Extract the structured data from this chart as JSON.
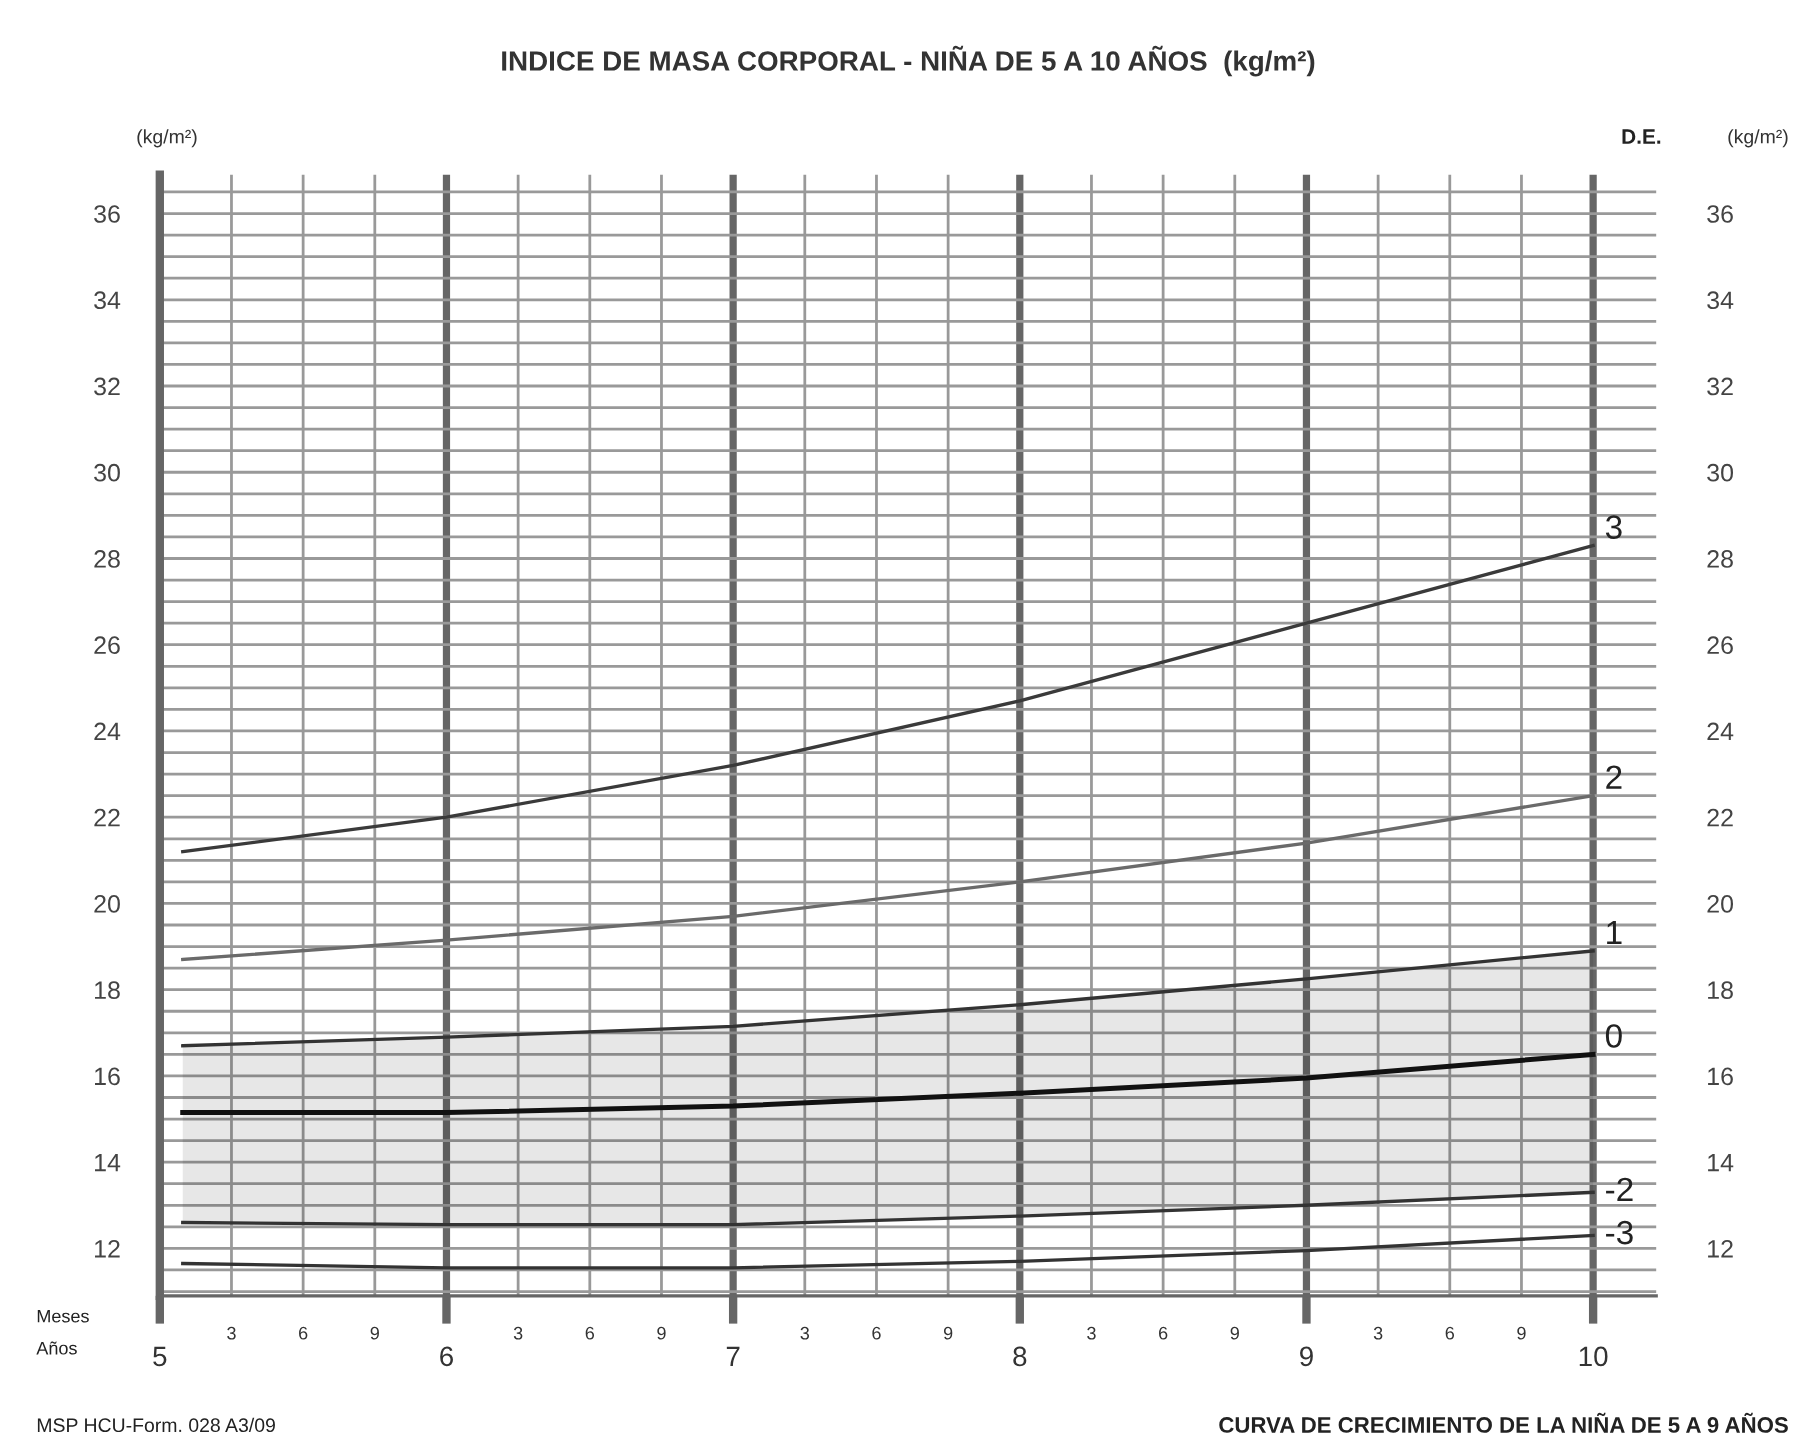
{
  "chart_data": {
    "type": "line",
    "title": "INDICE DE MASA CORPORAL - NIÑA DE 5 A 10 AÑOS  (kg/m²)",
    "ylabel": "(kg/m²)",
    "y2label": "(kg/m²)",
    "annotations": [
      "D.E.",
      "Meses",
      "Años",
      "MSP HCU-Form. 028 A3/09",
      "CURVA DE CRECIMIENTO DE LA NIÑA DE 5 A 9 AÑOS",
      "3",
      "6",
      "9",
      "3",
      "6",
      "9",
      "3",
      "6",
      "9",
      "3",
      "6",
      "9",
      "3",
      "6",
      "9"
    ],
    "x": [
      5.08,
      6,
      7,
      8,
      9,
      10
    ],
    "series": [
      {
        "name": "3",
        "color": "#3a3a3a",
        "values": [
          21.2,
          22.0,
          23.2,
          24.7,
          26.5,
          28.3
        ]
      },
      {
        "name": "2",
        "color": "#6a6a6a",
        "values": [
          18.7,
          19.15,
          19.7,
          20.5,
          21.4,
          22.5
        ]
      },
      {
        "name": "1",
        "color": "#333333",
        "values": [
          16.7,
          16.9,
          17.15,
          17.65,
          18.25,
          18.9
        ]
      },
      {
        "name": "0",
        "color": "#111111",
        "values": [
          15.15,
          15.15,
          15.3,
          15.6,
          15.95,
          16.5
        ],
        "lower": [
          12.6,
          12.55,
          12.55,
          12.75,
          13.0,
          13.3
        ],
        "upper": [
          16.7,
          16.9,
          17.15,
          17.65,
          18.25,
          18.9
        ]
      },
      {
        "name": "-2",
        "color": "#333333",
        "values": [
          12.6,
          12.55,
          12.55,
          12.75,
          13.0,
          13.3
        ]
      },
      {
        "name": "-3",
        "color": "#333333",
        "values": [
          11.65,
          11.55,
          11.55,
          11.7,
          11.95,
          12.3
        ]
      }
    ],
    "xlim": [
      5,
      10.22
    ],
    "ylim": [
      10.9,
      36.9
    ],
    "y2lim": [
      10.9,
      36.9
    ],
    "xticks": [
      5,
      {
        "value": 5.25,
        "label": null
      },
      {
        "value": 5.5,
        "label": null
      },
      {
        "value": 5.75,
        "label": null
      },
      6,
      {
        "value": 6.25,
        "label": null
      },
      {
        "value": 6.5,
        "label": null
      },
      {
        "value": 6.75,
        "label": null
      },
      7,
      {
        "value": 7.25,
        "label": null
      },
      {
        "value": 7.5,
        "label": null
      },
      {
        "value": 7.75,
        "label": null
      },
      8,
      {
        "value": 8.25,
        "label": null
      },
      {
        "value": 8.5,
        "label": null
      },
      {
        "value": 8.75,
        "label": null
      },
      9,
      {
        "value": 9.25,
        "label": null
      },
      {
        "value": 9.5,
        "label": null
      },
      {
        "value": 9.75,
        "label": null
      },
      10
    ],
    "yticks": [
      {
        "value": 11,
        "label": null
      },
      {
        "value": 11.5,
        "label": null
      },
      12,
      {
        "value": 12.5,
        "label": null
      },
      {
        "value": 13,
        "label": null
      },
      {
        "value": 13.5,
        "label": null
      },
      14,
      {
        "value": 14.5,
        "label": null
      },
      {
        "value": 15,
        "label": null
      },
      {
        "value": 15.5,
        "label": null
      },
      16,
      {
        "value": 16.5,
        "label": null
      },
      {
        "value": 17,
        "label": null
      },
      {
        "value": 17.5,
        "label": null
      },
      18,
      {
        "value": 18.5,
        "label": null
      },
      {
        "value": 19,
        "label": null
      },
      {
        "value": 19.5,
        "label": null
      },
      20,
      {
        "value": 20.5,
        "label": null
      },
      {
        "value": 21,
        "label": null
      },
      {
        "value": 21.5,
        "label": null
      },
      22,
      {
        "value": 22.5,
        "label": null
      },
      {
        "value": 23,
        "label": null
      },
      {
        "value": 23.5,
        "label": null
      },
      24,
      {
        "value": 24.5,
        "label": null
      },
      {
        "value": 25,
        "label": null
      },
      {
        "value": 25.5,
        "label": null
      },
      26,
      {
        "value": 26.5,
        "label": null
      },
      {
        "value": 27,
        "label": null
      },
      {
        "value": 27.5,
        "label": null
      },
      28,
      {
        "value": 28.5,
        "label": null
      },
      {
        "value": 29,
        "label": null
      },
      {
        "value": 29.5,
        "label": null
      },
      30,
      {
        "value": 30.5,
        "label": null
      },
      {
        "value": 31,
        "label": null
      },
      {
        "value": 31.5,
        "label": null
      },
      32,
      {
        "value": 32.5,
        "label": null
      },
      {
        "value": 33,
        "label": null
      },
      {
        "value": 33.5,
        "label": null
      },
      34,
      {
        "value": 34.5,
        "label": null
      },
      {
        "value": 35,
        "label": null
      },
      {
        "value": 35.5,
        "label": null
      },
      36,
      {
        "value": 36.5,
        "label": null
      }
    ],
    "y2ticks": [
      12,
      14,
      16,
      18,
      20,
      22,
      24,
      26,
      28,
      30,
      32,
      34,
      36
    ],
    "grid": true,
    "legend": false,
    "line_style": "solid",
    "marker": "none"
  }
}
